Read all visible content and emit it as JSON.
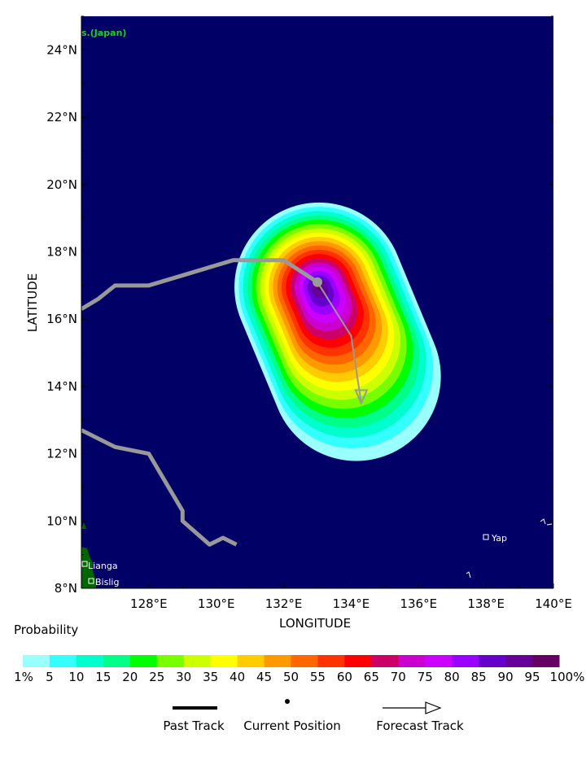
{
  "map": {
    "credit_text": "s.(Japan)",
    "xlabel": "LONGITUDE",
    "ylabel": "LATITUDE",
    "lon_range": [
      126,
      140
    ],
    "lat_range": [
      8,
      25
    ],
    "lon_ticks": [
      "128°E",
      "130°E",
      "132°E",
      "134°E",
      "136°E",
      "138°E",
      "140°E"
    ],
    "lat_ticks": [
      "8°N",
      "10°N",
      "12°N",
      "14°N",
      "16°N",
      "18°N",
      "20°N",
      "22°N",
      "24°N"
    ],
    "ocean_color": "#000066",
    "land_color": "#006600",
    "track_color": "#999999",
    "places": [
      {
        "name": "Lianga"
      },
      {
        "name": "Bislig"
      },
      {
        "name": "Yap"
      }
    ],
    "current_position": {
      "lon": 133.0,
      "lat": 17.1
    },
    "past_track_north": [
      [
        126.0,
        16.3
      ],
      [
        126.5,
        16.6
      ],
      [
        127.0,
        17.0
      ],
      [
        128.0,
        17.0
      ],
      [
        129.0,
        17.3
      ],
      [
        130.0,
        17.6
      ],
      [
        130.5,
        17.75
      ],
      [
        132.0,
        17.75
      ],
      [
        133.0,
        17.1
      ]
    ],
    "past_track_south": [
      [
        126.0,
        12.7
      ],
      [
        127.0,
        12.2
      ],
      [
        128.0,
        12.0
      ],
      [
        129.0,
        10.3
      ],
      [
        129.0,
        10.0
      ],
      [
        129.8,
        9.3
      ],
      [
        130.2,
        9.5
      ],
      [
        130.6,
        9.3
      ]
    ],
    "forecast_track": [
      [
        133.0,
        17.1
      ],
      [
        134.0,
        15.5
      ],
      [
        134.3,
        13.5
      ]
    ]
  },
  "legend": {
    "probability_title": "Probability",
    "colors": [
      "#99ffff",
      "#33ffff",
      "#00ffcc",
      "#00ff88",
      "#00ff00",
      "#77ff00",
      "#ccff00",
      "#ffff00",
      "#ffcc00",
      "#ff9900",
      "#ff6600",
      "#ff3300",
      "#ff0000",
      "#cc0066",
      "#cc00cc",
      "#cc00ff",
      "#9900ff",
      "#6600cc",
      "#660099",
      "#660066"
    ],
    "labels": [
      "1%",
      "5",
      "10",
      "15",
      "20",
      "25",
      "30",
      "35",
      "40",
      "45",
      "50",
      "55",
      "60",
      "65",
      "70",
      "75",
      "80",
      "85",
      "90",
      "95",
      "100%"
    ],
    "past_track": "Past Track",
    "current_position": "Current Position",
    "forecast_track": "Forecast Track"
  }
}
